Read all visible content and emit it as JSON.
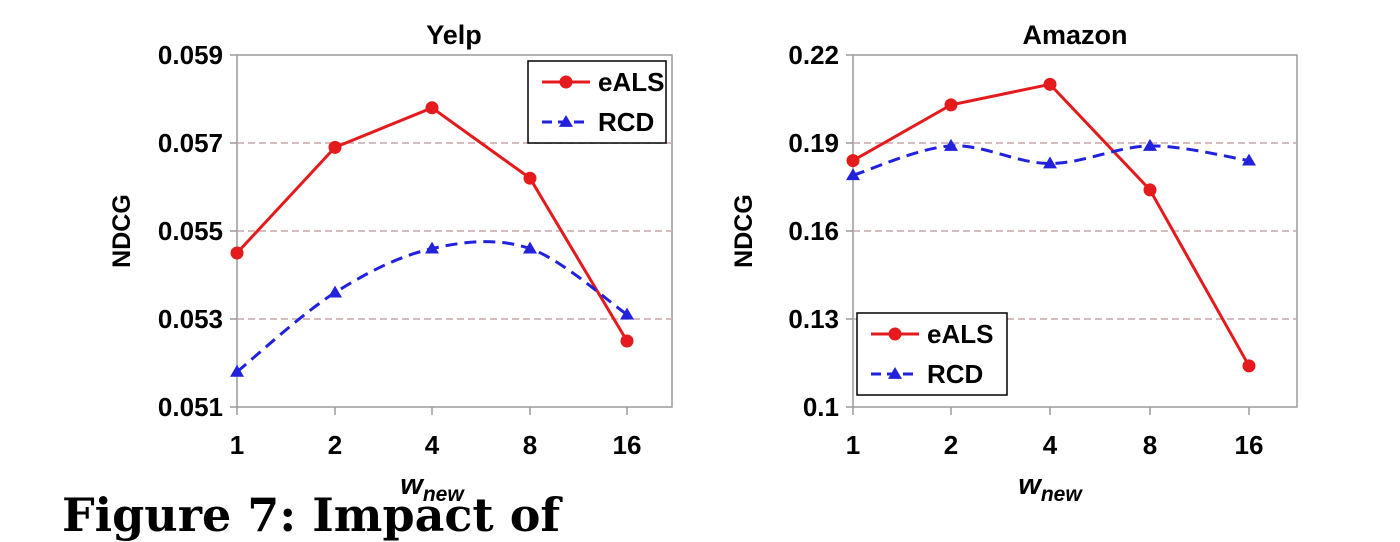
{
  "figure": {
    "caption": "Figure 7: Impact of"
  },
  "chart_data": [
    {
      "type": "line",
      "title": "Yelp",
      "xlabel_main": "w",
      "xlabel_sub": "new",
      "ylabel": "NDCG",
      "categories": [
        "1",
        "2",
        "4",
        "8",
        "16"
      ],
      "ylim": [
        0.051,
        0.059
      ],
      "yticks": [
        "0.051",
        "0.053",
        "0.055",
        "0.057",
        "0.059"
      ],
      "grid": "horizontal dashed",
      "legend_position": "top-right",
      "series": [
        {
          "name": "eALS",
          "color": "#e41a1c",
          "marker": "circle",
          "dash": "solid",
          "values": [
            0.0545,
            0.0569,
            0.0578,
            0.0562,
            0.0525
          ]
        },
        {
          "name": "RCD",
          "color": "#2222dd",
          "marker": "triangle",
          "dash": "dashed",
          "values": [
            0.0518,
            0.0536,
            0.0546,
            0.0546,
            0.0531
          ]
        }
      ]
    },
    {
      "type": "line",
      "title": "Amazon",
      "xlabel_main": "w",
      "xlabel_sub": "new",
      "ylabel": "NDCG",
      "categories": [
        "1",
        "2",
        "4",
        "8",
        "16"
      ],
      "ylim": [
        0.1,
        0.22
      ],
      "yticks": [
        "0.1",
        "0.13",
        "0.16",
        "0.19",
        "0.22"
      ],
      "grid": "horizontal dashed",
      "legend_position": "bottom-left",
      "series": [
        {
          "name": "eALS",
          "color": "#e41a1c",
          "marker": "circle",
          "dash": "solid",
          "values": [
            0.184,
            0.203,
            0.21,
            0.174,
            0.114
          ]
        },
        {
          "name": "RCD",
          "color": "#2222dd",
          "marker": "triangle",
          "dash": "dashed",
          "values": [
            0.179,
            0.189,
            0.183,
            0.189,
            0.184
          ]
        }
      ]
    }
  ]
}
